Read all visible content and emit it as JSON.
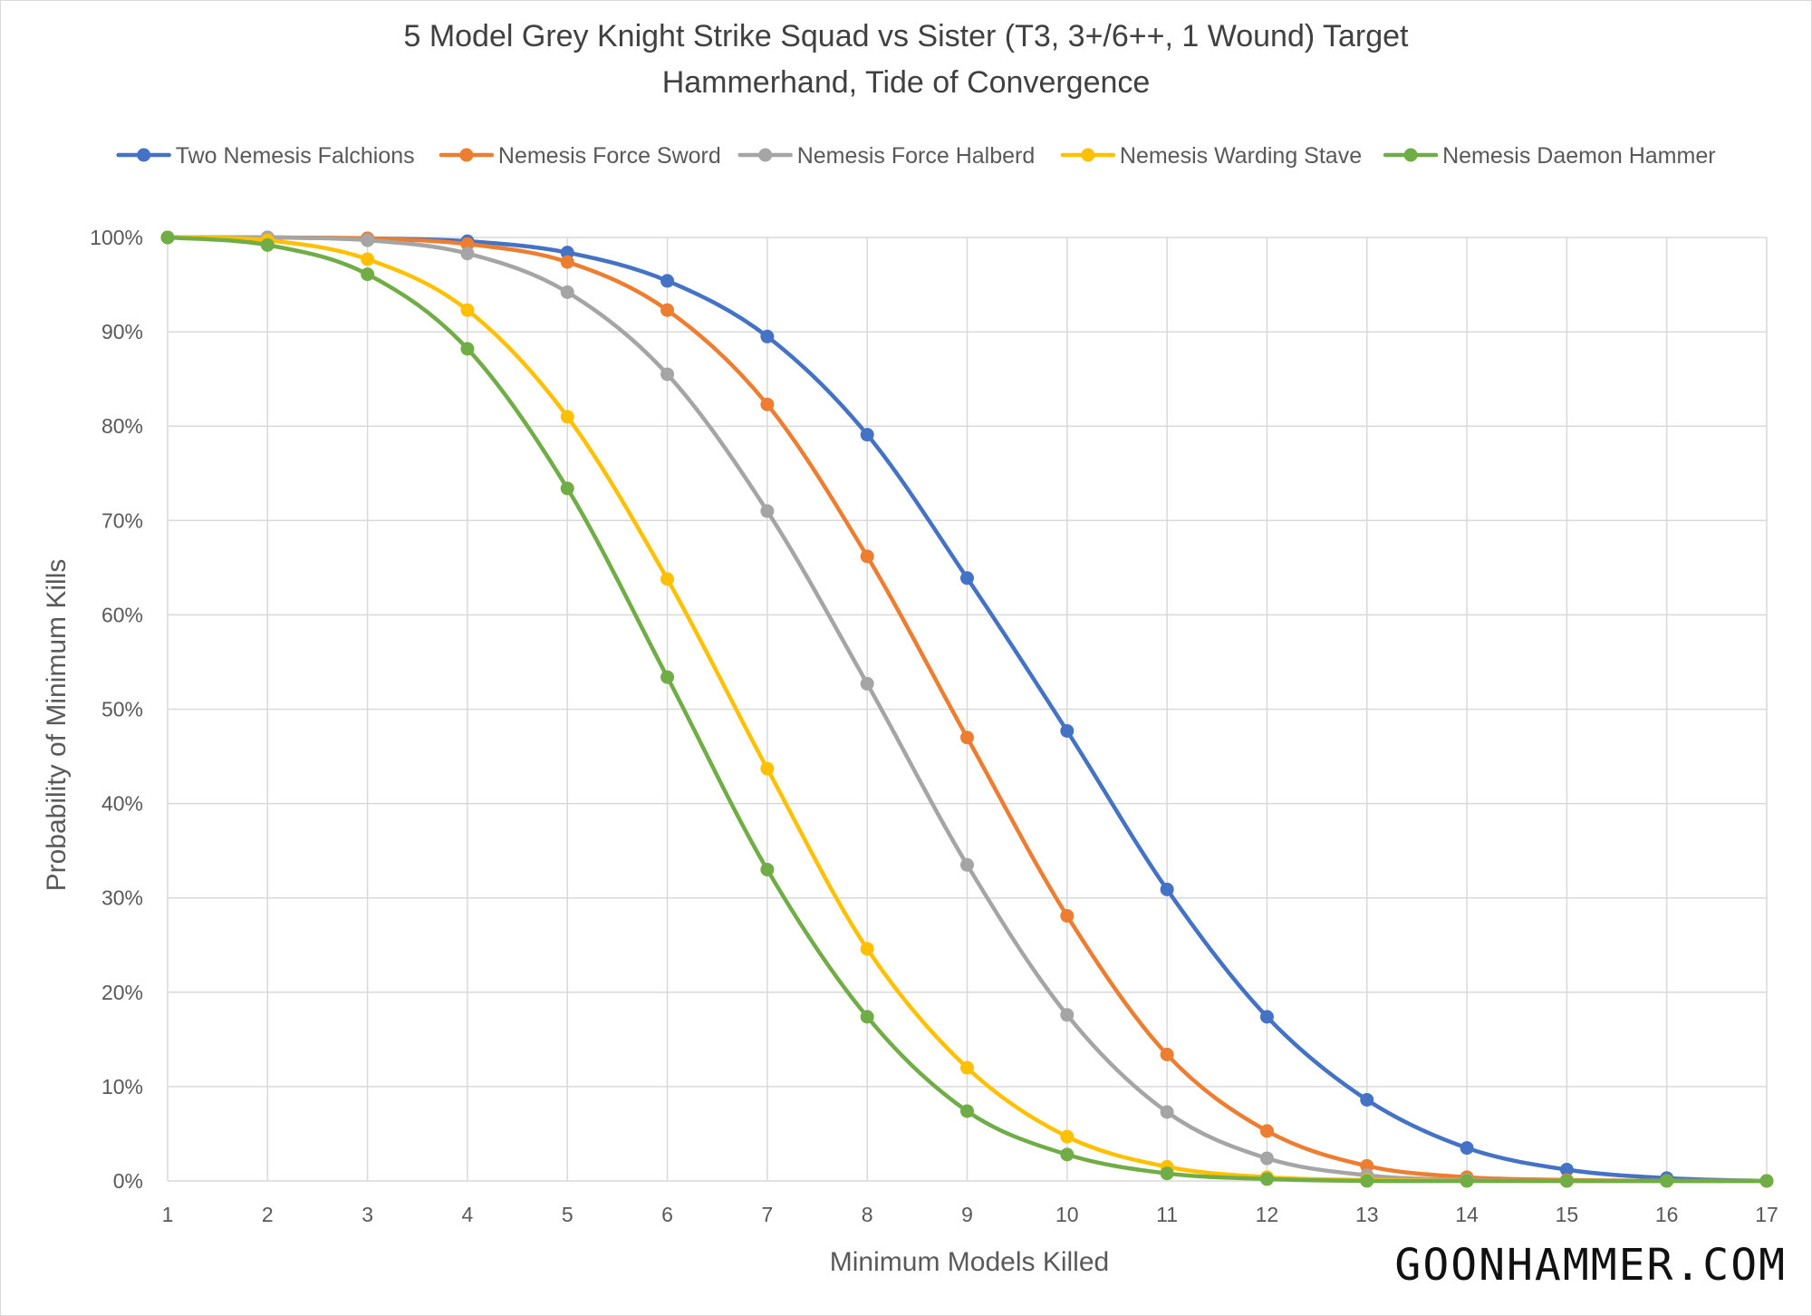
{
  "chart_data": {
    "type": "line",
    "title": "5 Model Grey Knight Strike Squad vs Sister (T3, 3+/6++, 1 Wound) Target",
    "subtitle": "Hammerhand, Tide of Convergence",
    "xlabel": "Minimum Models Killed",
    "ylabel": "Probability of Minimum Kills",
    "x": [
      1,
      2,
      3,
      4,
      5,
      6,
      7,
      8,
      9,
      10,
      11,
      12,
      13,
      14,
      15,
      16,
      17
    ],
    "xlim": [
      1,
      17
    ],
    "ylim": [
      0,
      100
    ],
    "y_ticks": [
      "0%",
      "10%",
      "20%",
      "30%",
      "40%",
      "50%",
      "60%",
      "70%",
      "80%",
      "90%",
      "100%"
    ],
    "grid": true,
    "legend_position": "top",
    "series": [
      {
        "name": "Two Nemesis Falchions",
        "color": "#4472c4",
        "values": [
          100,
          100,
          99.9,
          99.6,
          98.4,
          95.4,
          89.5,
          79.1,
          63.9,
          47.7,
          30.9,
          17.4,
          8.6,
          3.5,
          1.2,
          0.3,
          0
        ]
      },
      {
        "name": "Nemesis Force Sword",
        "color": "#ed7d31",
        "values": [
          100,
          100,
          99.9,
          99.3,
          97.4,
          92.3,
          82.3,
          66.2,
          47.0,
          28.1,
          13.4,
          5.3,
          1.6,
          0.4,
          0.1,
          0,
          0
        ]
      },
      {
        "name": "Nemesis Force Halberd",
        "color": "#a5a5a5",
        "values": [
          100,
          100,
          99.7,
          98.3,
          94.2,
          85.5,
          71.0,
          52.7,
          33.5,
          17.6,
          7.3,
          2.4,
          0.6,
          0.1,
          0,
          0,
          0
        ]
      },
      {
        "name": "Nemesis Warding Stave",
        "color": "#ffc000",
        "values": [
          100,
          99.7,
          97.7,
          92.3,
          81.0,
          63.8,
          43.7,
          24.6,
          12.0,
          4.7,
          1.5,
          0.4,
          0.1,
          0,
          0,
          0,
          0
        ]
      },
      {
        "name": "Nemesis Daemon Hammer",
        "color": "#70ad47",
        "values": [
          100,
          99.2,
          96.1,
          88.2,
          73.4,
          53.4,
          33.0,
          17.4,
          7.4,
          2.8,
          0.8,
          0.2,
          0,
          0,
          0,
          0,
          0
        ]
      }
    ]
  },
  "watermark": "GOONHAMMER.COM"
}
